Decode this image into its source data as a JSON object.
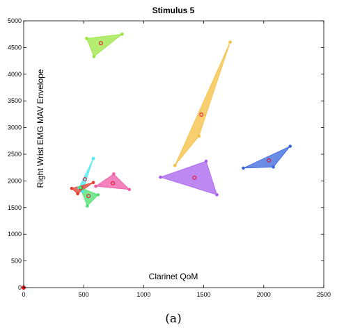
{
  "chart_data": {
    "type": "scatter",
    "title": "Stimulus 5",
    "xlabel": "Clarinet QoM",
    "ylabel": "Right Wrist EMG MAV Envelope",
    "caption": "(a)",
    "xlim": [
      0,
      2500
    ],
    "ylim": [
      0,
      5000
    ],
    "xticks": [
      "0",
      "500",
      "1000",
      "1500",
      "2000",
      "2500"
    ],
    "yticks": [
      "0",
      "500",
      "1000",
      "1500",
      "2000",
      "2500",
      "3000",
      "3500",
      "4000",
      "4500",
      "5000"
    ],
    "grid": false,
    "origin_point": {
      "x": 0,
      "y": 0,
      "color": "#ee1111"
    },
    "series": [
      {
        "color": "#99e640",
        "points": [
          [
            525,
            4670
          ],
          [
            820,
            4750
          ],
          [
            585,
            4330
          ]
        ],
        "centroid": [
          643,
          4583
        ]
      },
      {
        "color": "#f5bf3f",
        "points": [
          [
            1720,
            4600
          ],
          [
            1260,
            2290
          ],
          [
            1460,
            2840
          ]
        ],
        "centroid": [
          1480,
          3243
        ]
      },
      {
        "color": "#3a66dd",
        "points": [
          [
            1830,
            2240
          ],
          [
            2220,
            2650
          ],
          [
            2080,
            2260
          ]
        ],
        "centroid": [
          2043,
          2383
        ]
      },
      {
        "color": "#a860ee",
        "points": [
          [
            1140,
            2070
          ],
          [
            1520,
            2370
          ],
          [
            1610,
            1740
          ]
        ],
        "centroid": [
          1423,
          2060
        ]
      },
      {
        "color": "#ef5aa6",
        "points": [
          [
            600,
            1900
          ],
          [
            750,
            2130
          ],
          [
            880,
            1840
          ]
        ],
        "centroid": [
          743,
          1957
        ]
      },
      {
        "color": "#4ae8f0",
        "points": [
          [
            490,
            1800
          ],
          [
            580,
            2420
          ],
          [
            460,
            1870
          ]
        ],
        "centroid": [
          510,
          2030
        ]
      },
      {
        "color": "#e23b2c",
        "points": [
          [
            400,
            1860
          ],
          [
            580,
            1970
          ],
          [
            450,
            1760
          ]
        ],
        "centroid": [
          477,
          1863
        ]
      },
      {
        "color": "#4ee06e",
        "points": [
          [
            470,
            1880
          ],
          [
            620,
            1740
          ],
          [
            530,
            1530
          ]
        ],
        "centroid": [
          540,
          1717
        ]
      }
    ]
  }
}
